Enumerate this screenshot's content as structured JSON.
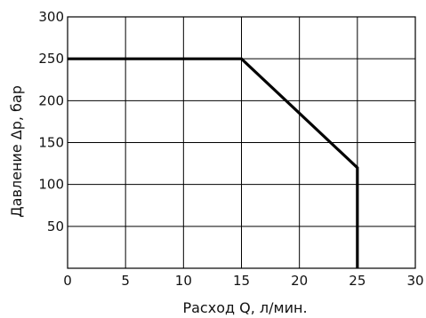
{
  "chart_data": {
    "type": "line",
    "title": "",
    "xlabel": "Расход Q, л/мин.",
    "ylabel": "Давление Δp, бар",
    "xlim": [
      0,
      30
    ],
    "ylim": [
      0,
      300
    ],
    "x_ticks": [
      "0",
      "5",
      "10",
      "15",
      "20",
      "25",
      "30"
    ],
    "y_ticks": [
      "50",
      "100",
      "150",
      "200",
      "250",
      "300"
    ],
    "grid": true,
    "legend": "none",
    "series": [
      {
        "color": "#000000",
        "points": [
          {
            "x": 0,
            "y": 250
          },
          {
            "x": 15,
            "y": 250
          },
          {
            "x": 25,
            "y": 120
          },
          {
            "x": 25,
            "y": 0
          }
        ]
      }
    ]
  }
}
